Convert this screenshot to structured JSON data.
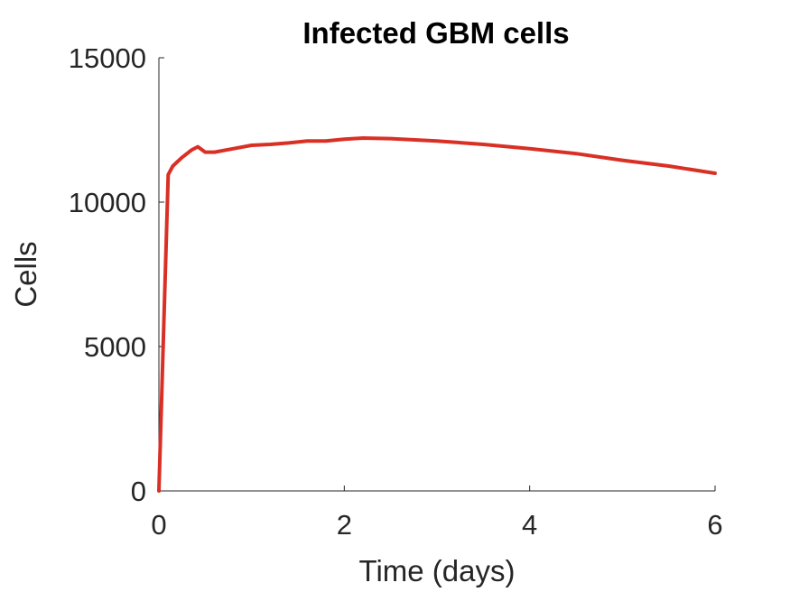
{
  "chart_data": {
    "type": "line",
    "title": "Infected GBM cells",
    "xlabel": "Time (days)",
    "ylabel": "Cells",
    "xlim": [
      0,
      6
    ],
    "ylim": [
      0,
      15000
    ],
    "xticks": [
      0,
      2,
      4,
      6
    ],
    "xtick_labels": [
      "0",
      "2",
      "4",
      "6"
    ],
    "yticks": [
      0,
      5000,
      10000,
      15000
    ],
    "ytick_labels": [
      "0",
      "5000",
      "10000",
      "15000"
    ],
    "grid": false,
    "legend": "none",
    "series": [
      {
        "color": "#d93026",
        "x": [
          0,
          0.1,
          0.15,
          0.25,
          0.35,
          0.42,
          0.5,
          0.6,
          0.8,
          1.0,
          1.2,
          1.4,
          1.6,
          1.8,
          2.0,
          2.2,
          2.5,
          3.0,
          3.5,
          4.0,
          4.5,
          5.0,
          5.5,
          6.0
        ],
        "y": [
          0,
          10950,
          11250,
          11550,
          11800,
          11920,
          11730,
          11730,
          11850,
          11970,
          12000,
          12050,
          12120,
          12120,
          12180,
          12220,
          12200,
          12120,
          12000,
          11850,
          11680,
          11450,
          11250,
          11000
        ]
      }
    ]
  }
}
